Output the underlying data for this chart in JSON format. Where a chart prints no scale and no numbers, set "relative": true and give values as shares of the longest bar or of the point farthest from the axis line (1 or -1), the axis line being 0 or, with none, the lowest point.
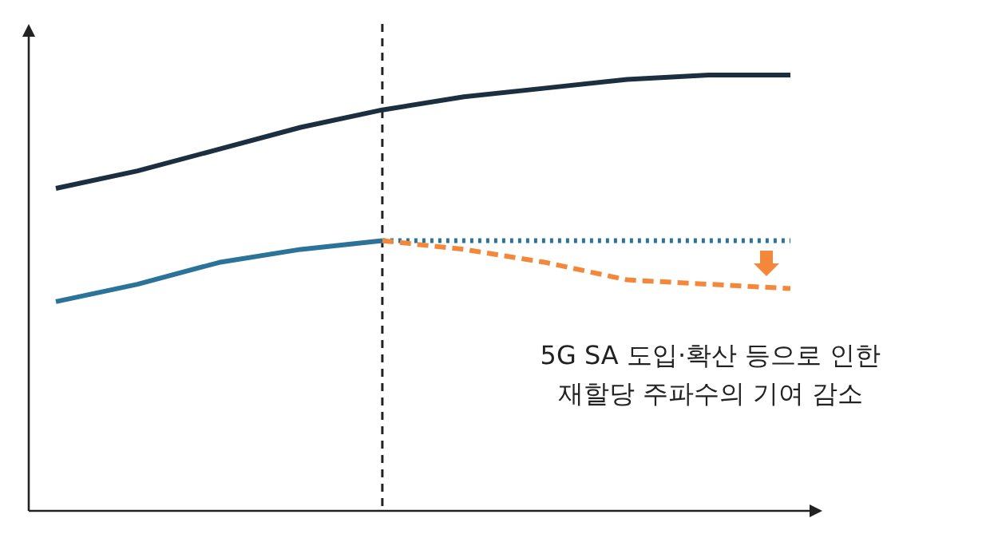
{
  "chart_data": {
    "type": "line",
    "relative": true,
    "categories": [
      null,
      null,
      null,
      null,
      null,
      null,
      null,
      null,
      null,
      null
    ],
    "series": [
      {
        "color": "#1b2f40",
        "line_style": "solid",
        "values": [
          0.74,
          0.78,
          0.83,
          0.88,
          0.92,
          0.95,
          0.97,
          0.99,
          1.0,
          1.0
        ]
      },
      {
        "color": "#2b7399",
        "line_style": "solid",
        "values": [
          0.48,
          0.52,
          0.57,
          0.6,
          0.62,
          null,
          null,
          null,
          null,
          null
        ]
      },
      {
        "color": "#2b7399",
        "line_style": "dotted",
        "values": [
          null,
          null,
          null,
          null,
          0.62,
          0.62,
          0.62,
          0.62,
          0.62,
          0.62
        ]
      },
      {
        "color": "#f4883a",
        "line_style": "dashed",
        "values": [
          null,
          null,
          null,
          null,
          0.62,
          0.6,
          0.57,
          0.53,
          0.52,
          0.51
        ]
      }
    ],
    "annotations": [
      "5G SA 도입·확산 등으로 인한\n재할당 주파수의 기여 감소"
    ]
  }
}
